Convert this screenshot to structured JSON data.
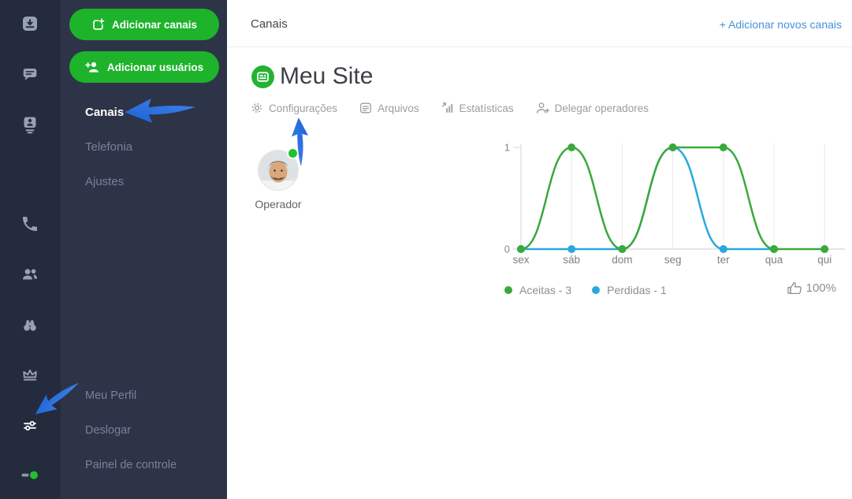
{
  "colors": {
    "accent_green": "#1db32b",
    "site_icon_green": "#25b233",
    "chart_green": "#3aa93c",
    "chart_blue": "#29a8e0",
    "link_blue": "#4a90d9",
    "arrow_blue": "#2e6fd8",
    "status_green": "#22c032",
    "sidebar_primary_bg": "#242b3d",
    "sidebar_secondary_bg": "#2e3447"
  },
  "icons": {
    "sidebar_primary": [
      "inbox-icon",
      "chats-icon",
      "contacts-icon",
      "phone-icon",
      "team-icon",
      "visitors-icon",
      "crown-icon",
      "settings-sliders-icon",
      "online-status-icon"
    ],
    "tabs": [
      "gear-icon",
      "files-icon",
      "stats-icon",
      "person-add-icon"
    ],
    "misc": [
      "site-channel-icon",
      "thumbs-up-icon",
      "annotation-arrows"
    ]
  },
  "sidebar_secondary": {
    "add_channels_button": "Adicionar canais",
    "add_users_button": "Adicionar usuários",
    "items": [
      {
        "label": "Canais",
        "active": true
      },
      {
        "label": "Telefonia",
        "active": false
      },
      {
        "label": "Ajustes",
        "active": false
      }
    ],
    "bottom_items": [
      {
        "label": "Meu Perfil"
      },
      {
        "label": "Deslogar"
      },
      {
        "label": "Painel de controle"
      }
    ]
  },
  "header": {
    "title": "Canais",
    "add_link": "+ Adicionar novos canais"
  },
  "site": {
    "name": "Meu Site"
  },
  "tabs": [
    {
      "label": "Configurações"
    },
    {
      "label": "Arquivos"
    },
    {
      "label": "Estatísticas"
    },
    {
      "label": "Delegar operadores"
    }
  ],
  "operator": {
    "label": "Operador",
    "status": "online"
  },
  "chart_data": {
    "type": "line",
    "title": "",
    "xlabel": "",
    "ylabel": "",
    "categories": [
      "sex",
      "sáb",
      "dom",
      "seg",
      "ter",
      "qua",
      "qui"
    ],
    "series": [
      {
        "name": "Aceitas",
        "total": 3,
        "color": "#3aa93c",
        "values": [
          0,
          1,
          0,
          1,
          1,
          0,
          0
        ]
      },
      {
        "name": "Perdidas",
        "total": 1,
        "color": "#29a8e0",
        "values": [
          0,
          0,
          0,
          1,
          0,
          0,
          null
        ]
      }
    ],
    "ylim": [
      0,
      1
    ],
    "yticks": [
      1,
      0
    ],
    "grid": "vertical",
    "smooth": true,
    "legend_position": "bottom"
  },
  "legend": [
    {
      "label": "Aceitas - 3",
      "color": "#3aa93c"
    },
    {
      "label": "Perdidas - 1",
      "color": "#29a8e0"
    }
  ],
  "satisfaction": {
    "value": "100%"
  }
}
